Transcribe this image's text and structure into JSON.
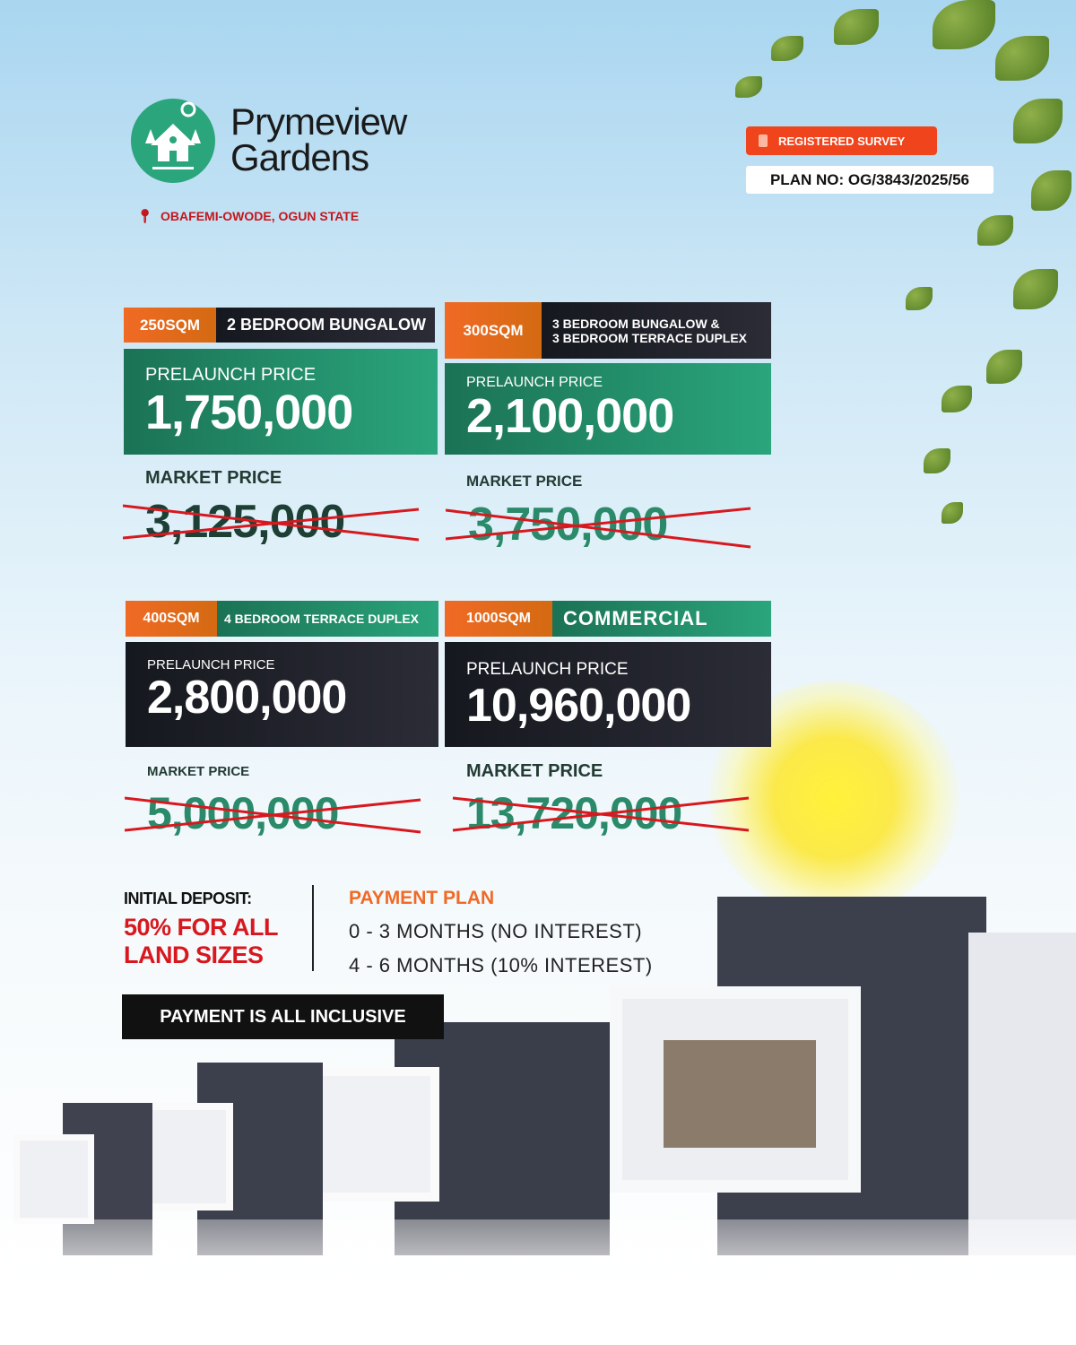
{
  "brand": {
    "line1": "Prymeview",
    "line2": "Gardens",
    "location": "OBAFEMI-OWODE, OGUN STATE",
    "logo_icon": "house-trees-icon"
  },
  "badge": {
    "label": "REGISTERED SURVEY",
    "plan": "PLAN NO: OG/3843/2025/56",
    "color": "#f0441c"
  },
  "cards": [
    {
      "size": "250SQM",
      "type": "2 BEDROOM BUNGALOW",
      "prelaunch_label": "PRELAUNCH PRICE",
      "prelaunch_price": "1,750,000",
      "market_label": "MARKET PRICE",
      "market_price": "3,125,000"
    },
    {
      "size": "300SQM",
      "type_line1": "3 BEDROOM BUNGALOW &",
      "type_line2": "3 BEDROOM TERRACE DUPLEX",
      "prelaunch_label": "PRELAUNCH PRICE",
      "prelaunch_price": "2,100,000",
      "market_label": "MARKET PRICE",
      "market_price": "3,750,000"
    },
    {
      "size": "400SQM",
      "type": "4 BEDROOM TERRACE DUPLEX",
      "prelaunch_label": "PRELAUNCH PRICE",
      "prelaunch_price": "2,800,000",
      "market_label": "MARKET PRICE",
      "market_price": "5,000,000"
    },
    {
      "size": "1000SQM",
      "type": "COMMERCIAL",
      "prelaunch_label": "PRELAUNCH PRICE",
      "prelaunch_price": "10,960,000",
      "market_label": "MARKET PRICE",
      "market_price": "13,720,000"
    }
  ],
  "deposit": {
    "label": "INITIAL DEPOSIT:",
    "line1": "50% FOR ALL",
    "line2": "LAND SIZES"
  },
  "payment_plan": {
    "title": "PAYMENT PLAN",
    "items": [
      "0 - 3 MONTHS (NO INTEREST)",
      "4 - 6 MONTHS (10% INTEREST)"
    ]
  },
  "footer_bar": "PAYMENT IS ALL INCLUSIVE",
  "colors": {
    "green": "#2aa57c",
    "orange": "#f06a25",
    "dark": "#1c1d25",
    "red": "#d7191f"
  }
}
